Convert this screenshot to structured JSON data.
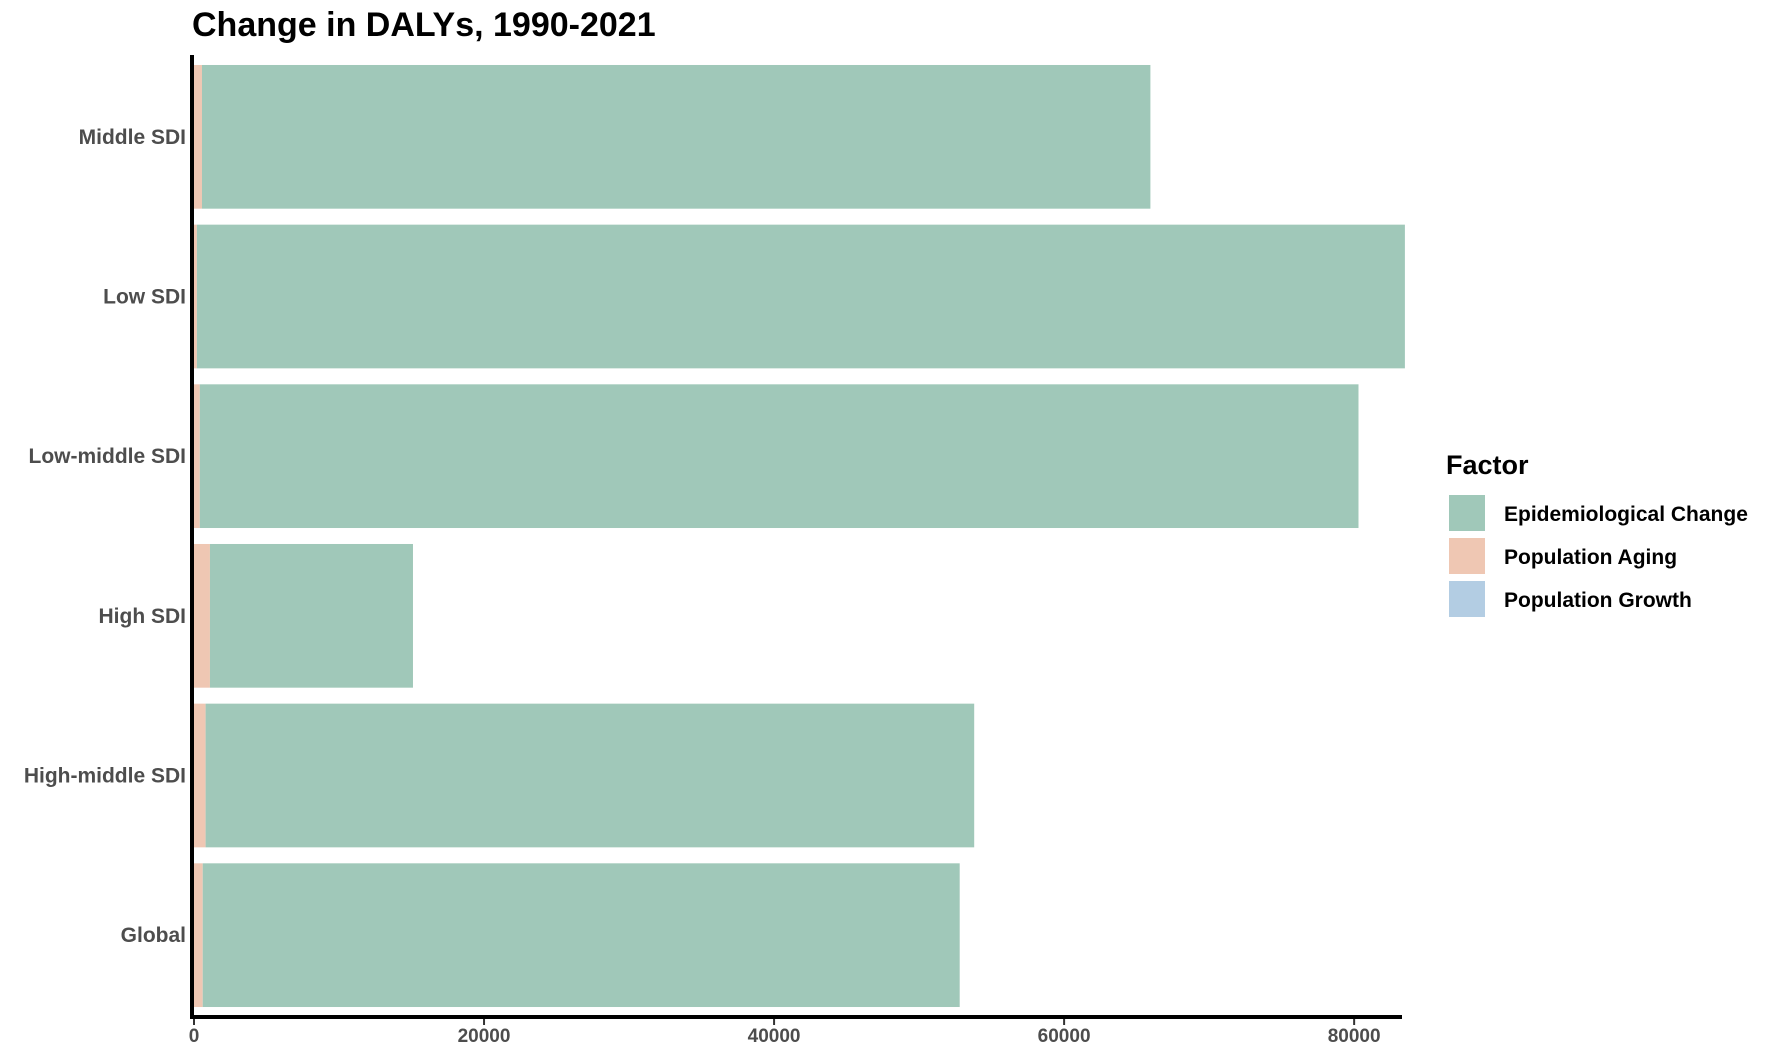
{
  "chart_data": {
    "type": "bar",
    "orientation": "horizontal",
    "stacked": true,
    "title": "Change in DALYs, 1990-2021",
    "xlabel": "",
    "ylabel": "",
    "categories": [
      "Global",
      "High-middle SDI",
      "High SDI",
      "Low-middle SDI",
      "Low SDI",
      "Middle SDI"
    ],
    "series": [
      {
        "name": "Population Aging",
        "color": "#efc7b3",
        "values": [
          600,
          800,
          1100,
          400,
          200,
          550
        ]
      },
      {
        "name": "Population Growth",
        "color": "#b3cde3",
        "values": [
          0,
          0,
          0,
          0,
          0,
          0
        ]
      },
      {
        "name": "Epidemiological Change",
        "color": "#a0c8b9",
        "values": [
          52200,
          53000,
          14000,
          79900,
          83300,
          65400
        ]
      }
    ],
    "xlim": [
      0,
      83300
    ],
    "xticks": [
      0,
      20000,
      40000,
      60000,
      80000
    ],
    "grid": false,
    "legend": {
      "title": "Factor",
      "position": "right",
      "entries": [
        {
          "label": "Epidemiological Change",
          "color": "#a0c8b9"
        },
        {
          "label": "Population Aging",
          "color": "#efc7b3"
        },
        {
          "label": "Population Growth",
          "color": "#b3cde3"
        }
      ]
    }
  }
}
